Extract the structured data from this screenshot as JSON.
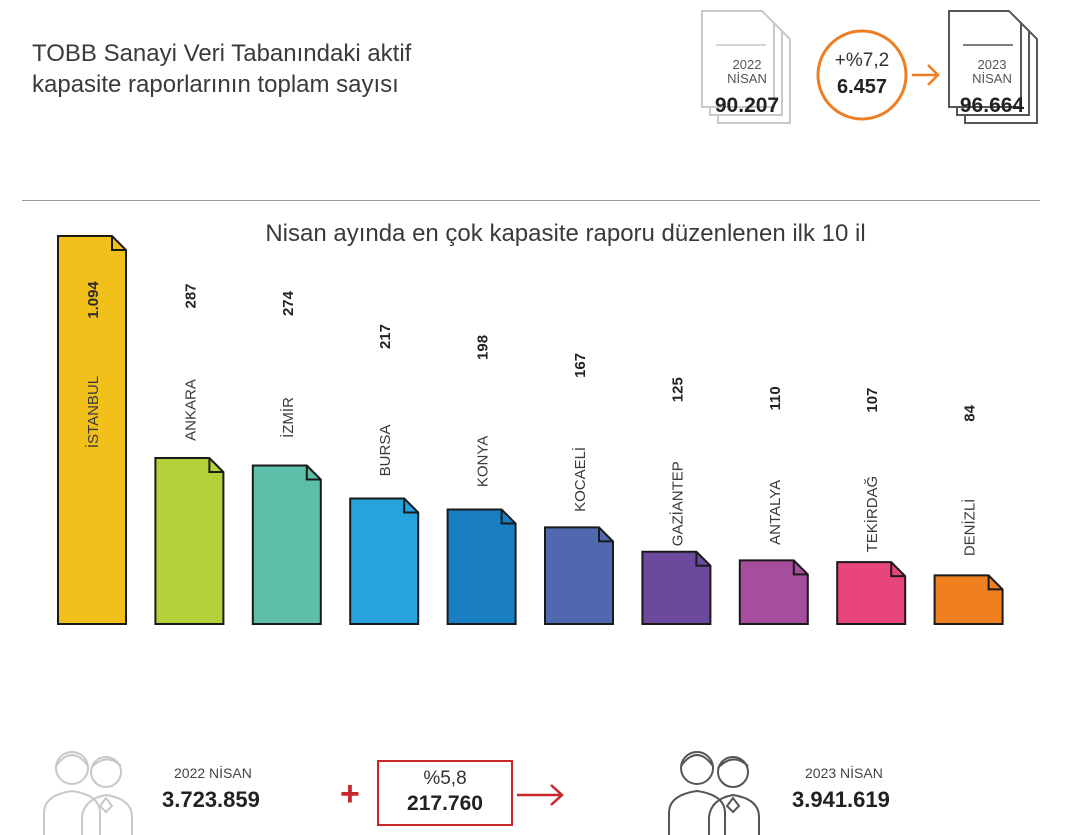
{
  "header": {
    "title_line1": "TOBB Sanayi Veri Tabanındaki aktif",
    "title_line2": "kapasite raporlarının toplam sayısı"
  },
  "summary": {
    "left_year": "2022",
    "left_month": "NİSAN",
    "left_value": "90.207",
    "change_pct": "+%7,2",
    "change_value": "6.457",
    "right_year": "2023",
    "right_month": "NİSAN",
    "right_value": "96.664",
    "accent_color": "#ef7d22"
  },
  "chart_data": {
    "type": "bar",
    "title": "Nisan ayında en çok kapasite raporu düzenlenen ilk 10 il",
    "categories": [
      "İSTANBUL",
      "ANKARA",
      "İZMİR",
      "BURSA",
      "KONYA",
      "KOCAELİ",
      "GAZİANTEP",
      "ANTALYA",
      "TEKİRDAĞ",
      "DENİZLİ"
    ],
    "values": [
      1094,
      287,
      274,
      217,
      198,
      167,
      125,
      110,
      107,
      84
    ],
    "value_labels": [
      "1.094",
      "287",
      "274",
      "217",
      "198",
      "167",
      "125",
      "110",
      "107",
      "84"
    ],
    "colors": [
      "#f2c01b",
      "#b3d239",
      "#5dbfa9",
      "#26a3dd",
      "#1a7ec2",
      "#5068b0",
      "#6b4a9e",
      "#a64d9e",
      "#e8447e",
      "#f0801f"
    ]
  },
  "employment": {
    "left_label": "2022 NİSAN",
    "left_value": "3.723.859",
    "plus_sign": "+",
    "change_pct": "%5,8",
    "change_value": "217.760",
    "right_label": "2023 NİSAN",
    "right_value": "3.941.619",
    "accent_color": "#c9262c"
  }
}
